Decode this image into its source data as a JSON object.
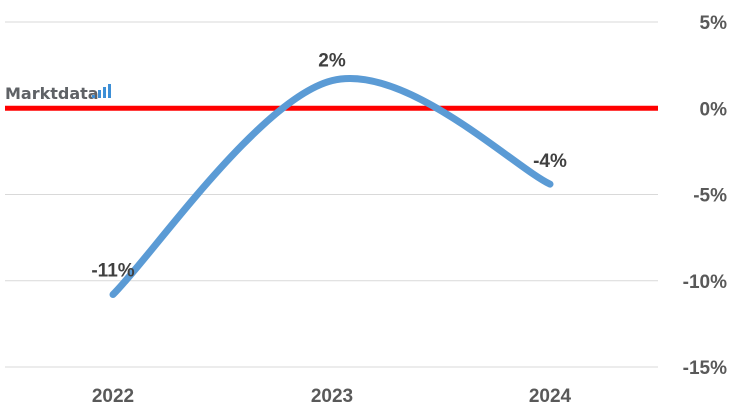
{
  "chart_data": {
    "type": "line",
    "smooth": true,
    "categories": [
      "2022",
      "2023",
      "2024"
    ],
    "series": [
      {
        "values": [
          -10.8,
          1.6,
          -4.4
        ],
        "data_labels": [
          "-11%",
          "2%",
          "-4%"
        ],
        "color": "#5b9bd5"
      }
    ],
    "y_axis": {
      "position": "right",
      "ylim": [
        -15,
        5
      ],
      "ticks": [
        5,
        0,
        -5,
        -10,
        -15
      ],
      "tick_labels": [
        "5%",
        "0%",
        "-5%",
        "-10%",
        "-15%"
      ]
    },
    "grid": true,
    "grid_color": "#d9d9d9",
    "zero_line_color": "#ff0000",
    "title": "",
    "xlabel": "",
    "ylabel": ""
  },
  "logo": {
    "text": "Marktdata",
    "text_color": "#5f6266",
    "accent_color": "#3d8fd6"
  }
}
